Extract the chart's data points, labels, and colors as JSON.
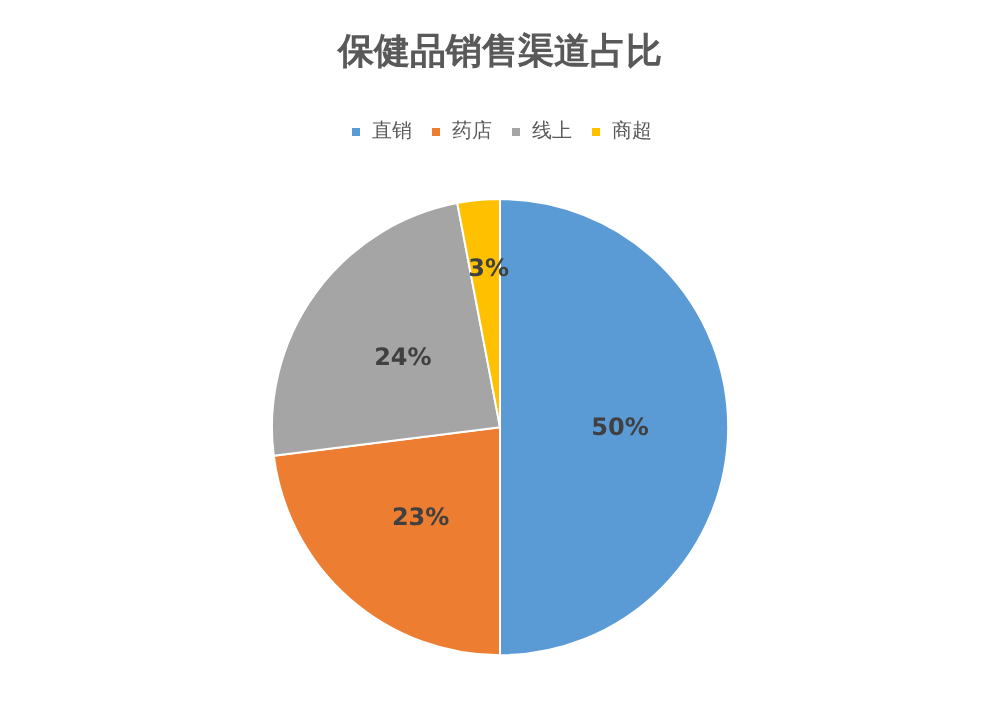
{
  "chart_data": {
    "type": "pie",
    "title": "保健品销售渠道占比",
    "categories": [
      "直销",
      "药店",
      "线上",
      "商超"
    ],
    "values": [
      50,
      23,
      24,
      3
    ],
    "colors": [
      "#5b9bd5",
      "#ed7d31",
      "#a5a5a5",
      "#ffc000"
    ],
    "value_labels": [
      "50%",
      "23%",
      "24%",
      "3%"
    ],
    "legend": "top"
  }
}
